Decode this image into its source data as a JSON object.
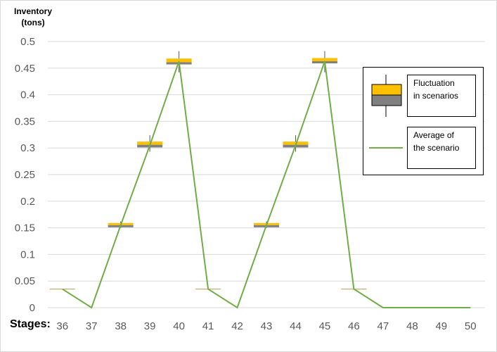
{
  "chart_data": {
    "type": "line",
    "ylabel_lines": [
      "Inventory",
      "(tons)"
    ],
    "xlabel": "Stages:",
    "categories": [
      "36",
      "37",
      "38",
      "39",
      "40",
      "41",
      "42",
      "43",
      "44",
      "45",
      "46",
      "47",
      "48",
      "49",
      "50"
    ],
    "ylim": [
      0,
      0.5
    ],
    "yticks": [
      "0",
      "0.05",
      "0.1",
      "0.15",
      "0.2",
      "0.25",
      "0.3",
      "0.35",
      "0.4",
      "0.45",
      "0.5"
    ],
    "grid": true,
    "series": [
      {
        "name": "Average of the scenario",
        "color": "#70AD47",
        "values": [
          0.035,
          0,
          0.155,
          0.305,
          0.463,
          0.035,
          0,
          0.155,
          0.305,
          0.463,
          0.035,
          0,
          0,
          0,
          0
        ]
      }
    ],
    "fluctuation": {
      "name": "Fluctuation in scenarios",
      "upper_color": "#FFC000",
      "lower_color": "#808080",
      "boxes": [
        {
          "x": "36",
          "low": 0.0345,
          "mid": 0.035,
          "high": 0.0355,
          "whisker_low": 0.035,
          "whisker_high": 0.035
        },
        {
          "x": "38",
          "low": 0.151,
          "mid": 0.155,
          "high": 0.159,
          "whisker_low": 0.15,
          "whisker_high": 0.162
        },
        {
          "x": "39",
          "low": 0.301,
          "mid": 0.306,
          "high": 0.312,
          "whisker_low": 0.293,
          "whisker_high": 0.324
        },
        {
          "x": "40",
          "low": 0.457,
          "mid": 0.461,
          "high": 0.468,
          "whisker_low": 0.442,
          "whisker_high": 0.482
        },
        {
          "x": "41",
          "low": 0.0345,
          "mid": 0.035,
          "high": 0.0355,
          "whisker_low": 0.035,
          "whisker_high": 0.035
        },
        {
          "x": "43",
          "low": 0.151,
          "mid": 0.155,
          "high": 0.159,
          "whisker_low": 0.15,
          "whisker_high": 0.162
        },
        {
          "x": "44",
          "low": 0.301,
          "mid": 0.306,
          "high": 0.312,
          "whisker_low": 0.293,
          "whisker_high": 0.324
        },
        {
          "x": "45",
          "low": 0.459,
          "mid": 0.463,
          "high": 0.469,
          "whisker_low": 0.442,
          "whisker_high": 0.482
        },
        {
          "x": "46",
          "low": 0.0345,
          "mid": 0.035,
          "high": 0.0355,
          "whisker_low": 0.035,
          "whisker_high": 0.035
        }
      ]
    },
    "legend": {
      "placement": "right",
      "items": [
        {
          "label_lines": [
            "Fluctuation",
            "in scenarios"
          ]
        },
        {
          "label_lines": [
            "Average of",
            "the scenario"
          ]
        }
      ]
    }
  }
}
